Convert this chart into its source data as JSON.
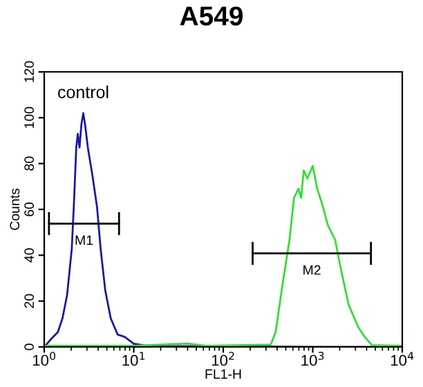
{
  "chart_data": {
    "type": "line",
    "title": "A549",
    "xlabel": "FL1-H",
    "ylabel": "Counts",
    "log": "x",
    "xlim": [
      1,
      10000
    ],
    "ylim": [
      0,
      120
    ],
    "xticks": [
      {
        "value": 1,
        "label": "10$^{0}$"
      },
      {
        "value": 10,
        "label": "10$^{1}$"
      },
      {
        "value": 100,
        "label": "10$^{2}$"
      },
      {
        "value": 1000,
        "label": "10$^{3}$"
      },
      {
        "value": 10000,
        "label": "10$^{4}$"
      }
    ],
    "yticks": [
      0,
      20,
      40,
      60,
      80,
      100,
      120
    ],
    "grid": false,
    "marker": "none",
    "line_style": "solid",
    "annotations": [
      {
        "text": "control",
        "x": 2.73,
        "y": 102
      },
      {
        "text": "M1",
        "x": 2.78,
        "y": 53.8
      },
      {
        "text": "M2",
        "x": 975,
        "y": 40.8
      }
    ],
    "series": [
      {
        "color": "#1a1aa0",
        "x": [
          1,
          1.19,
          1.42,
          1.6,
          1.8,
          2.03,
          2.15,
          2.28,
          2.37,
          2.48,
          2.6,
          2.73,
          2.86,
          3.07,
          3.45,
          3.89,
          4.27,
          4.81,
          5.53,
          6.61,
          7.9,
          10,
          14.3,
          100,
          1000,
          10000
        ],
        "values": [
          0,
          3.4,
          6.5,
          12.5,
          22.6,
          42.7,
          63,
          87,
          93,
          87,
          97,
          102,
          97,
          87,
          75,
          61,
          42.7,
          24.6,
          12.5,
          5.4,
          4.4,
          1.4,
          0.4,
          0.3,
          0,
          0
        ]
      },
      {
        "color": "#33dd33",
        "x": [
          1,
          10,
          40,
          65,
          339,
          385,
          457,
          550,
          617,
          692,
          741,
          794,
          871,
          1000,
          1122,
          1259,
          1479,
          1778,
          1995,
          2512,
          3236,
          3802,
          4571,
          10000
        ],
        "values": [
          0.5,
          0.5,
          1.5,
          0.5,
          1,
          6.5,
          26.6,
          46.8,
          65,
          69,
          65,
          77,
          73.5,
          79,
          69,
          63,
          53,
          46.8,
          36.7,
          18.5,
          8.5,
          4.4,
          0.8,
          0.5
        ]
      },
      {
        "color": "#000000",
        "x": [
          1.13,
          6.85
        ],
        "values": [
          53.8,
          53.8
        ],
        "errors": [
          5,
          5
        ]
      },
      {
        "color": "#000000",
        "x": [
          213,
          4467
        ],
        "values": [
          40.8,
          40.8
        ],
        "errors": [
          5,
          5
        ]
      }
    ]
  }
}
